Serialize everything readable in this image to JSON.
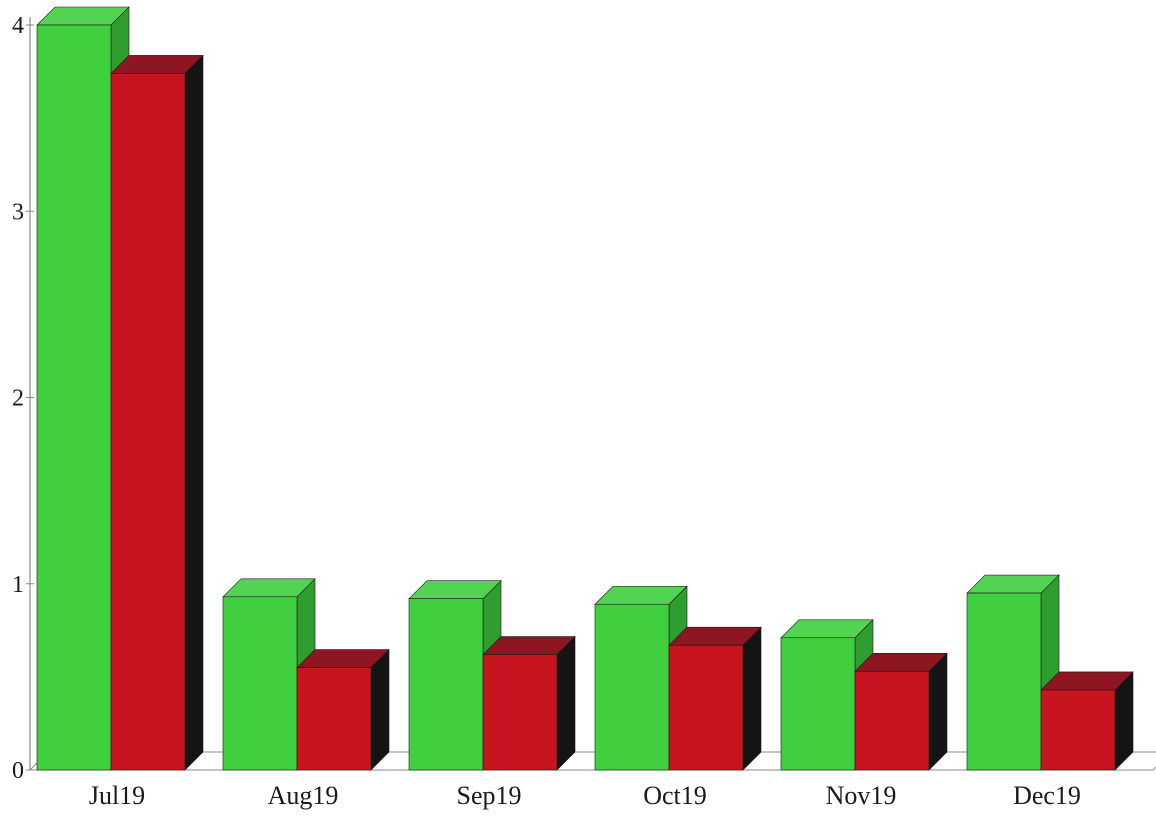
{
  "chart_data": {
    "type": "bar",
    "style": "3d-clustered",
    "title": "",
    "xlabel": "",
    "ylabel": "",
    "categories": [
      "Jul19",
      "Aug19",
      "Sep19",
      "Oct19",
      "Nov19",
      "Dec19"
    ],
    "series": [
      {
        "values": [
          4.0,
          0.93,
          0.92,
          0.89,
          0.71,
          0.95
        ]
      },
      {
        "values": [
          3.74,
          0.55,
          0.62,
          0.67,
          0.53,
          0.43
        ]
      }
    ],
    "ylim": [
      0,
      4
    ],
    "y_ticks": [
      "0",
      "1",
      "2",
      "3",
      "4"
    ],
    "grid": false,
    "legend": "none"
  },
  "colors": {
    "series_front": [
      "#3fcf3f",
      "#c8141f"
    ],
    "series_top": [
      "#52d452",
      "#8e1522"
    ],
    "series_side": [
      "#2f9e2f",
      "#141414"
    ],
    "floor": "#ffffff",
    "axis": "#8a8a8a"
  }
}
